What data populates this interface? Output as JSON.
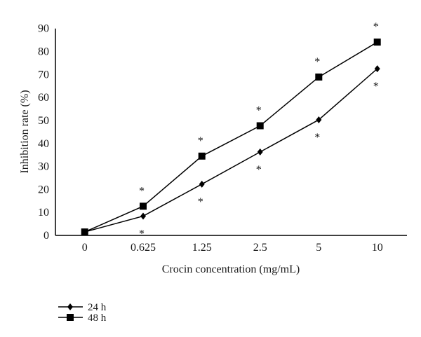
{
  "chart_data": {
    "type": "line",
    "title": "",
    "xlabel": "Crocin concentration (mg/mL)",
    "ylabel": "Inhibition rate (%)",
    "categories": [
      "0",
      "0.625",
      "1.25",
      "2.5",
      "5",
      "10"
    ],
    "ylim": [
      0,
      90
    ],
    "yticks": [
      0,
      10,
      20,
      30,
      40,
      50,
      60,
      70,
      80,
      90
    ],
    "grid": false,
    "legend_position": "bottom-left",
    "series": [
      {
        "name": "24 h",
        "marker": "diamond",
        "values": [
          1.5,
          8.4,
          22.3,
          36.3,
          50.3,
          72.5
        ],
        "significance": [
          "",
          "*",
          "*",
          "*",
          "*",
          "*"
        ],
        "significance_position": "below"
      },
      {
        "name": "48 h",
        "marker": "square",
        "values": [
          1.5,
          12.7,
          34.5,
          47.7,
          68.9,
          84.1
        ],
        "significance": [
          "",
          "*",
          "*",
          "*",
          "*",
          "*"
        ],
        "significance_position": "above"
      }
    ],
    "colors": {
      "line": "#000000",
      "text": "#1a1a1a"
    }
  }
}
